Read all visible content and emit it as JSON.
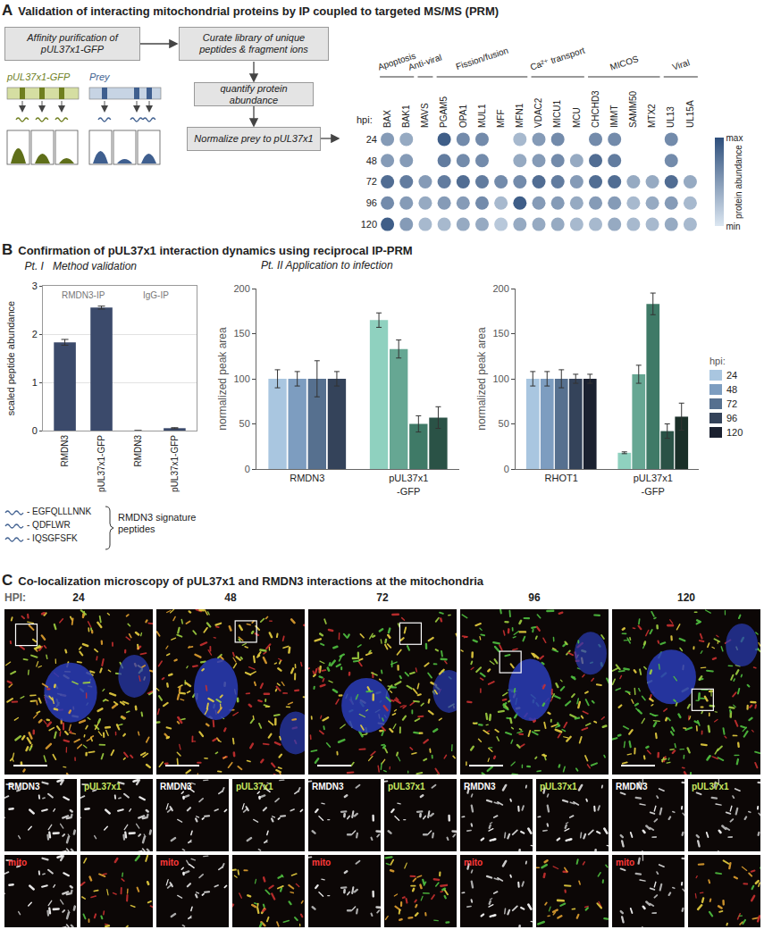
{
  "figure": {
    "panel_a": {
      "letter": "A",
      "title": "Validation of interacting mitochondrial proteins by IP coupled to targeted MS/MS (PRM)",
      "flowchart": {
        "steps": [
          "Affinity purification of pUL37x1-GFP",
          "Curate library of unique peptides & fragment ions",
          "quantify protein abundance",
          "Normalize prey to pUL37x1"
        ],
        "bait": "pUL37x1-GFP",
        "prey": "Prey"
      }
    },
    "panel_b": {
      "letter": "B",
      "title": "Confirmation of pUL37x1 interaction dynamics using reciprocal IP-PRM",
      "part_two_title": "Pt. II Application to infection",
      "peptides": {
        "label": "RMDN3 signature peptides",
        "sequences": [
          "- EGFQLLLNNK",
          "- QDFLWR",
          "- IQSGFSFK"
        ]
      }
    },
    "panel_c": {
      "letter": "C",
      "title": "Co-localization microscopy of pUL37x1 and RMDN3 interactions at the mitochondria",
      "hpi_label": "HPI:",
      "timepoints": [
        24,
        48,
        72,
        96,
        120
      ],
      "channels": [
        "RMDN3",
        "pUL37x1",
        "mito"
      ]
    }
  },
  "chart_data": [
    {
      "type": "dot_heatmap",
      "categories": [
        "BAX",
        "BAK1",
        "MAVS",
        "PGAM5",
        "OPA1",
        "MUL1",
        "MFF",
        "MFN1",
        "VDAC2",
        "MICU1",
        "MCU",
        "CHCHD3",
        "IMMT",
        "SAMM50",
        "MTX2",
        "UL13",
        "UL15A"
      ],
      "groups": [
        {
          "name": "Apoptosis",
          "members": [
            "BAX",
            "BAK1"
          ]
        },
        {
          "name": "Anti-viral",
          "members": [
            "MAVS"
          ]
        },
        {
          "name": "Fission/fusion",
          "members": [
            "PGAM5",
            "OPA1",
            "MUL1",
            "MFF",
            "MFN1"
          ]
        },
        {
          "name": "Ca²⁺ transport",
          "members": [
            "VDAC2",
            "MICU1",
            "MCU"
          ]
        },
        {
          "name": "MICOS",
          "members": [
            "CHCHD3",
            "IMMT",
            "SAMM50",
            "MTX2"
          ]
        },
        {
          "name": "Viral",
          "members": [
            "UL13",
            "UL15A"
          ]
        }
      ],
      "y_label": "hpi:",
      "rows": [
        24,
        48,
        72,
        96,
        120
      ],
      "cells": [
        [
          0.5,
          0.4,
          null,
          0.9,
          0.6,
          0.6,
          null,
          0.3,
          0.5,
          0.6,
          null,
          0.6,
          0.6,
          null,
          null,
          0.6,
          null
        ],
        [
          0.5,
          0.5,
          null,
          0.7,
          0.6,
          0.6,
          null,
          0.4,
          0.5,
          0.6,
          0.4,
          0.8,
          0.7,
          null,
          null,
          0.6,
          null
        ],
        [
          0.8,
          0.7,
          0.5,
          0.7,
          0.8,
          0.7,
          0.6,
          0.6,
          0.8,
          0.7,
          0.5,
          0.8,
          0.8,
          0.4,
          0.4,
          0.8,
          0.4
        ],
        [
          0.6,
          0.5,
          0.4,
          0.5,
          0.5,
          0.6,
          0.3,
          0.9,
          0.5,
          0.5,
          0.4,
          0.5,
          0.5,
          0.3,
          0.4,
          0.5,
          0.3
        ],
        [
          0.9,
          0.5,
          0.3,
          0.3,
          0.4,
          0.4,
          0.2,
          0.4,
          0.4,
          0.4,
          0.3,
          0.3,
          0.4,
          0.3,
          0.3,
          0.4,
          0.3
        ]
      ],
      "colorbar": {
        "title": "protein abundance",
        "range": [
          0,
          1
        ],
        "ticks": [
          {
            "value": 0,
            "label": "min"
          },
          {
            "value": 1,
            "label": "max"
          }
        ]
      }
    },
    {
      "type": "bar",
      "title": "Pt. I   Method validation",
      "categories": [
        "RMDN3",
        "pUL37x1-GFP",
        "RMDN3",
        "pUL37x1-GFP"
      ],
      "values": [
        1.83,
        2.55,
        0,
        0.05
      ],
      "errors": [
        0.06,
        0.03,
        0,
        0.01
      ],
      "color": "#3b4a6b",
      "ylabel": "scaled peptide abundance",
      "ylim": [
        0,
        3
      ],
      "yticks": [
        0,
        1,
        2,
        3
      ],
      "grid": true,
      "group_labels": [
        "RMDN3-IP",
        "IgG-IP"
      ]
    },
    {
      "type": "bar",
      "categories": [
        "RMDN3",
        "pUL37x1-GFP"
      ],
      "ylabel": "normalized peak area",
      "ylim": [
        0,
        200
      ],
      "yticks": [
        0,
        50,
        100,
        150,
        200
      ],
      "series": [
        {
          "name": "24",
          "colors": [
            "#a9c6e0",
            "#8fd1bf"
          ],
          "values": [
            100,
            165
          ],
          "errors": [
            10,
            8
          ]
        },
        {
          "name": "48",
          "colors": [
            "#7d9dc0",
            "#66a793"
          ],
          "values": [
            100,
            133
          ],
          "errors": [
            8,
            10
          ]
        },
        {
          "name": "72",
          "colors": [
            "#56708f",
            "#3f7a67"
          ],
          "values": [
            100,
            50
          ],
          "errors": [
            20,
            9
          ]
        },
        {
          "name": "96",
          "colors": [
            "#34435a",
            "#2a5246"
          ],
          "values": [
            100,
            57
          ],
          "errors": [
            8,
            12
          ]
        }
      ]
    },
    {
      "type": "bar",
      "categories": [
        "RHOT1",
        "pUL37x1-GFP"
      ],
      "ylabel": "normalized peak area",
      "ylim": [
        0,
        200
      ],
      "yticks": [
        0,
        50,
        100,
        150,
        200
      ],
      "legend": "right",
      "legend_title": "hpi:",
      "series": [
        {
          "name": "24",
          "colors": [
            "#a9c6e0",
            "#8fd1bf"
          ],
          "values": [
            100,
            18
          ],
          "errors": [
            8,
            1
          ]
        },
        {
          "name": "48",
          "colors": [
            "#7d9dc0",
            "#66a793"
          ],
          "values": [
            100,
            105
          ],
          "errors": [
            8,
            10
          ]
        },
        {
          "name": "72",
          "colors": [
            "#56708f",
            "#3f7a67"
          ],
          "values": [
            100,
            183
          ],
          "errors": [
            10,
            12
          ]
        },
        {
          "name": "96",
          "colors": [
            "#34435a",
            "#2a5246"
          ],
          "values": [
            100,
            42
          ],
          "errors": [
            5,
            8
          ]
        },
        {
          "name": "120",
          "colors": [
            "#1b2130",
            "#1a2f28"
          ],
          "values": [
            100,
            58
          ],
          "errors": [
            5,
            15
          ]
        }
      ]
    }
  ]
}
